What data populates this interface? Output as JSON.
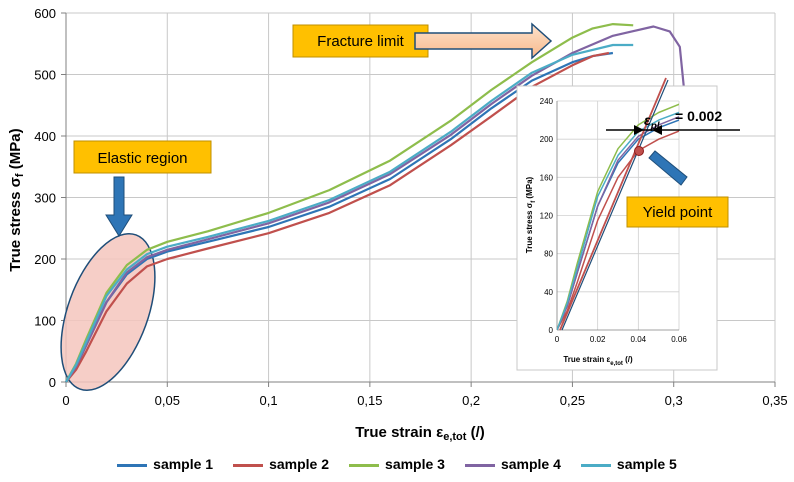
{
  "chart_data": {
    "type": "line",
    "xlabel": "True strain",
    "xlabel_sub": "e,tot",
    "xlabel_unit": "(/)",
    "ylabel": "True stress",
    "ylabel_sub": "f",
    "ylabel_unit": "(MPa)",
    "xlim": [
      0,
      0.35
    ],
    "ylim": [
      0,
      600
    ],
    "xticks": [
      0,
      0.05,
      0.1,
      0.15,
      0.2,
      0.25,
      0.3,
      0.35
    ],
    "xtick_labels": [
      "0",
      "0,05",
      "0,1",
      "0,15",
      "0,2",
      "0,25",
      "0,3",
      "0,35"
    ],
    "yticks": [
      0,
      100,
      200,
      300,
      400,
      500,
      600
    ],
    "ytick_labels": [
      "0",
      "100",
      "200",
      "300",
      "400",
      "500",
      "600"
    ],
    "grid": true,
    "legend_position": "bottom",
    "series": [
      {
        "name": "sample 1",
        "color": "#2e75b6",
        "x": [
          0,
          0.005,
          0.01,
          0.02,
          0.03,
          0.04,
          0.05,
          0.07,
          0.1,
          0.13,
          0.16,
          0.19,
          0.21,
          0.23,
          0.25,
          0.26,
          0.27
        ],
        "y": [
          0,
          25,
          60,
          130,
          175,
          200,
          212,
          228,
          252,
          285,
          330,
          395,
          445,
          490,
          520,
          530,
          535
        ]
      },
      {
        "name": "sample 2",
        "color": "#c0504d",
        "x": [
          0,
          0.005,
          0.01,
          0.02,
          0.03,
          0.04,
          0.05,
          0.07,
          0.1,
          0.13,
          0.16,
          0.19,
          0.21,
          0.23,
          0.25,
          0.26,
          0.268
        ],
        "y": [
          0,
          20,
          50,
          115,
          160,
          188,
          200,
          217,
          242,
          275,
          320,
          385,
          432,
          480,
          515,
          530,
          535
        ]
      },
      {
        "name": "sample 3",
        "color": "#8ebd4c",
        "x": [
          0,
          0.005,
          0.01,
          0.02,
          0.03,
          0.04,
          0.05,
          0.07,
          0.1,
          0.13,
          0.16,
          0.19,
          0.21,
          0.23,
          0.25,
          0.26,
          0.27,
          0.28
        ],
        "y": [
          0,
          30,
          70,
          145,
          190,
          215,
          228,
          245,
          275,
          312,
          360,
          425,
          475,
          520,
          560,
          575,
          582,
          580
        ]
      },
      {
        "name": "sample 4",
        "color": "#8064a2",
        "x": [
          0,
          0.005,
          0.01,
          0.02,
          0.03,
          0.04,
          0.05,
          0.07,
          0.1,
          0.13,
          0.16,
          0.19,
          0.21,
          0.23,
          0.25,
          0.27,
          0.29,
          0.298,
          0.303,
          0.305
        ],
        "y": [
          0,
          25,
          60,
          130,
          178,
          203,
          215,
          232,
          258,
          292,
          338,
          402,
          452,
          498,
          535,
          563,
          578,
          570,
          545,
          480
        ]
      },
      {
        "name": "sample 5",
        "color": "#4bacc6",
        "x": [
          0,
          0.005,
          0.01,
          0.02,
          0.03,
          0.04,
          0.05,
          0.07,
          0.1,
          0.13,
          0.16,
          0.19,
          0.21,
          0.23,
          0.25,
          0.27,
          0.28
        ],
        "y": [
          0,
          28,
          65,
          140,
          183,
          208,
          220,
          236,
          262,
          296,
          342,
          407,
          457,
          503,
          532,
          548,
          548
        ]
      }
    ],
    "annotations": {
      "fracture_limit": "Fracture limit",
      "elastic_region": "Elastic region",
      "yield_point": "Yield point",
      "offset_label": "= 0.002",
      "offset_symbol": "ε",
      "offset_sub": "pl"
    },
    "inset": {
      "xlabel": "True strain",
      "xlabel_sub": "e,tot",
      "xlabel_unit": "(/)",
      "ylabel": "True stress",
      "ylabel_sub": "f",
      "ylabel_unit": "(MPa)",
      "xlim": [
        0,
        0.06
      ],
      "ylim": [
        0,
        240
      ],
      "xticks": [
        0,
        0.02,
        0.04,
        0.06
      ],
      "xtick_labels": [
        "0",
        "0.02",
        "0.04",
        "0.06"
      ],
      "yticks": [
        0,
        40,
        80,
        120,
        160,
        200,
        240
      ],
      "ytick_labels": [
        "0",
        "40",
        "80",
        "120",
        "160",
        "200",
        "240"
      ],
      "yield_point": {
        "x": 0.043,
        "y": 190
      }
    }
  }
}
